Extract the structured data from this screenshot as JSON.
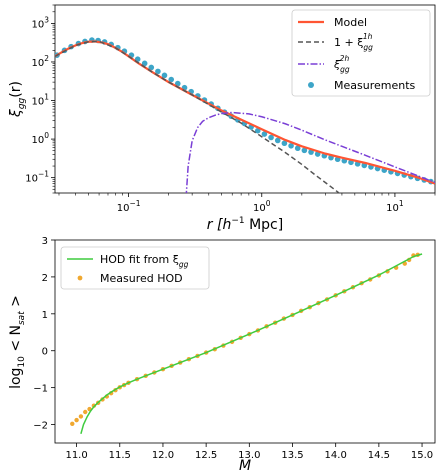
{
  "chart_data": [
    {
      "type": "line",
      "xscale": "log",
      "yscale": "log",
      "xlim": [
        0.028,
        20
      ],
      "ylim": [
        0.04,
        3000
      ],
      "xlabel": {
        "text": "r [h",
        "sup": "−1",
        "tail": " Mpc]"
      },
      "ylabel": {
        "text": "ξ",
        "sub": "gg",
        "tail": "(r)"
      },
      "xticks": [
        {
          "value": 0.1,
          "base": "10",
          "exp": "−1"
        },
        {
          "value": 1,
          "base": "10",
          "exp": "0"
        },
        {
          "value": 10,
          "base": "10",
          "exp": "1"
        }
      ],
      "yticks": [
        {
          "value": 0.1,
          "base": "10",
          "exp": "−1"
        },
        {
          "value": 1,
          "base": "10",
          "exp": "0"
        },
        {
          "value": 10,
          "base": "10",
          "exp": "1"
        },
        {
          "value": 100,
          "base": "10",
          "exp": "2"
        },
        {
          "value": 1000,
          "base": "10",
          "exp": "3"
        }
      ],
      "legend_position": "top-right",
      "legend": [
        {
          "label": "Model",
          "kind": "line",
          "color": "#ff5533"
        },
        {
          "label_pre": "1 + ξ",
          "label_sub": "gg",
          "label_sup": "1h",
          "kind": "dashed",
          "color": "#555555"
        },
        {
          "label_pre": "ξ",
          "label_sub": "gg",
          "label_sup": "2h",
          "kind": "dashdot",
          "color": "#7a3fd6"
        },
        {
          "label": "Measurements",
          "kind": "marker",
          "color": "#3da5c8"
        }
      ],
      "series": [
        {
          "key": "model",
          "style": "solid",
          "color": "#ff5533",
          "x": [
            0.028,
            0.032,
            0.036,
            0.04,
            0.045,
            0.05,
            0.056,
            0.063,
            0.07,
            0.08,
            0.09,
            0.1,
            0.12,
            0.15,
            0.2,
            0.3,
            0.5,
            0.7,
            1.0,
            1.5,
            2.0,
            3.0,
            4.0,
            6.0,
            10.0,
            15.0,
            20.0
          ],
          "y": [
            140,
            185,
            230,
            270,
            310,
            335,
            340,
            320,
            290,
            230,
            180,
            140,
            90,
            55,
            30,
            14,
            5.5,
            3.2,
            1.8,
            0.95,
            0.65,
            0.42,
            0.33,
            0.24,
            0.15,
            0.1,
            0.07
          ]
        },
        {
          "key": "one_halo",
          "style": "dashed",
          "color": "#555555",
          "x": [
            0.028,
            0.04,
            0.05,
            0.06,
            0.08,
            0.1,
            0.15,
            0.2,
            0.3,
            0.5,
            0.7,
            1.0,
            1.5,
            2.0,
            2.5,
            3.0,
            3.5,
            4.0,
            4.3
          ],
          "y": [
            140,
            270,
            335,
            340,
            230,
            140,
            55,
            30,
            14,
            5.0,
            2.6,
            1.15,
            0.45,
            0.22,
            0.12,
            0.075,
            0.05,
            0.035,
            0.03
          ]
        },
        {
          "key": "two_halo",
          "style": "dashdot",
          "color": "#7a3fd6",
          "x": [
            0.27,
            0.28,
            0.3,
            0.33,
            0.36,
            0.4,
            0.45,
            0.5,
            0.6,
            0.8,
            1.0,
            1.5,
            2.0,
            3.0,
            4.0,
            6.0,
            10.0,
            15.0,
            20.0
          ],
          "y": [
            0.03,
            0.2,
            0.9,
            2.0,
            2.9,
            3.6,
            4.2,
            4.6,
            4.9,
            4.5,
            3.8,
            2.5,
            1.7,
            0.95,
            0.65,
            0.38,
            0.19,
            0.11,
            0.075
          ]
        }
      ],
      "measurements": {
        "color": "#3da5c8",
        "x": [
          0.029,
          0.033,
          0.037,
          0.042,
          0.047,
          0.053,
          0.059,
          0.066,
          0.074,
          0.083,
          0.093,
          0.105,
          0.117,
          0.132,
          0.148,
          0.166,
          0.186,
          0.209,
          0.234,
          0.263,
          0.295,
          0.331,
          0.371,
          0.417,
          0.468,
          0.525,
          0.589,
          0.661,
          0.741,
          0.832,
          0.933,
          1.047,
          1.175,
          1.318,
          1.479,
          1.66,
          1.862,
          2.089,
          2.344,
          2.63,
          2.951,
          3.311,
          3.715,
          4.169,
          4.677,
          5.248,
          5.888,
          6.607,
          7.413,
          8.318,
          9.333,
          10.47,
          11.75,
          13.18,
          14.79,
          16.6,
          18.62
        ],
        "y": [
          150,
          200,
          250,
          300,
          340,
          370,
          360,
          330,
          285,
          235,
          190,
          150,
          118,
          92,
          72,
          57,
          45,
          35,
          27.5,
          21.5,
          17,
          13.2,
          10.3,
          8.1,
          6.3,
          5.0,
          3.95,
          3.15,
          2.55,
          2.05,
          1.65,
          1.35,
          1.1,
          0.92,
          0.78,
          0.67,
          0.58,
          0.51,
          0.46,
          0.41,
          0.37,
          0.33,
          0.3,
          0.275,
          0.25,
          0.228,
          0.208,
          0.19,
          0.172,
          0.156,
          0.142,
          0.129,
          0.117,
          0.106,
          0.096,
          0.087,
          0.079
        ]
      }
    },
    {
      "type": "line",
      "xscale": "linear",
      "yscale": "linear",
      "xlim": [
        10.75,
        15.15
      ],
      "ylim": [
        -2.5,
        3.0
      ],
      "xlabel": {
        "text": "M"
      },
      "ylabel": {
        "text": "log",
        "sub": "10",
        "tail": " < N",
        "sub2": "sat",
        "tail2": " >"
      },
      "xticks": [
        11.0,
        11.5,
        12.0,
        12.5,
        13.0,
        13.5,
        14.0,
        14.5,
        15.0
      ],
      "xtick_labels": [
        "11.0",
        "11.5",
        "12.0",
        "12.5",
        "13.0",
        "13.5",
        "14.0",
        "14.5",
        "15.0"
      ],
      "yticks": [
        -2,
        -1,
        0,
        1,
        2,
        3
      ],
      "ytick_labels": [
        "−2",
        "−1",
        "0",
        "1",
        "2",
        "3"
      ],
      "legend_position": "top-left",
      "legend": [
        {
          "label_pre": "HOD fit from ξ",
          "label_sub": "gg",
          "kind": "line",
          "color": "#3fcc3f"
        },
        {
          "label": "Measured HOD",
          "kind": "marker",
          "color": "#f0a830"
        }
      ],
      "series": [
        {
          "key": "hod_fit",
          "style": "solid",
          "color": "#3fcc3f",
          "x": [
            11.05,
            11.08,
            11.12,
            11.16,
            11.2,
            11.25,
            11.3,
            11.35,
            11.4,
            11.45,
            11.5,
            11.6,
            11.7,
            11.8,
            12.0,
            12.5,
            13.0,
            13.5,
            14.0,
            14.5,
            14.9,
            15.0
          ],
          "y": [
            -2.25,
            -2.0,
            -1.8,
            -1.64,
            -1.52,
            -1.4,
            -1.3,
            -1.2,
            -1.12,
            -1.05,
            -0.98,
            -0.87,
            -0.77,
            -0.68,
            -0.5,
            -0.05,
            0.45,
            0.97,
            1.5,
            2.05,
            2.55,
            2.62
          ]
        }
      ],
      "measurements": {
        "color": "#f0a830",
        "x": [
          10.95,
          11.0,
          11.05,
          11.1,
          11.15,
          11.2,
          11.25,
          11.3,
          11.35,
          11.4,
          11.45,
          11.5,
          11.55,
          11.6,
          11.7,
          11.8,
          11.9,
          12.0,
          12.1,
          12.2,
          12.3,
          12.4,
          12.5,
          12.6,
          12.7,
          12.8,
          12.9,
          13.0,
          13.1,
          13.2,
          13.3,
          13.4,
          13.5,
          13.6,
          13.7,
          13.8,
          13.9,
          14.0,
          14.1,
          14.2,
          14.3,
          14.4,
          14.5,
          14.6,
          14.7,
          14.8,
          14.85,
          14.9,
          14.95
        ],
        "y": [
          -1.98,
          -1.88,
          -1.78,
          -1.66,
          -1.58,
          -1.49,
          -1.41,
          -1.32,
          -1.24,
          -1.15,
          -1.07,
          -0.99,
          -0.93,
          -0.87,
          -0.77,
          -0.68,
          -0.59,
          -0.5,
          -0.41,
          -0.32,
          -0.23,
          -0.14,
          -0.05,
          0.04,
          0.14,
          0.24,
          0.35,
          0.45,
          0.55,
          0.66,
          0.76,
          0.87,
          0.97,
          1.08,
          1.18,
          1.29,
          1.39,
          1.5,
          1.61,
          1.72,
          1.83,
          1.93,
          2.04,
          2.15,
          2.25,
          2.36,
          2.46,
          2.58,
          2.6
        ]
      }
    }
  ]
}
